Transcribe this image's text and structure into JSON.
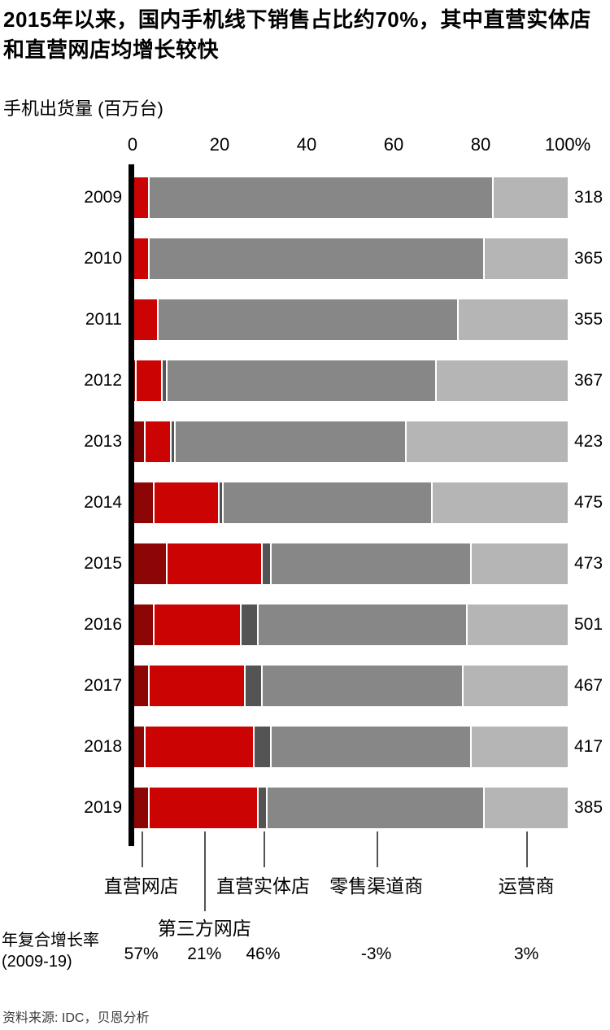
{
  "page": {
    "title": "2015年以来，国内手机线下销售占比约70%，其中直营实体店和直营网店均增长较快",
    "subtitle": "手机出货量 (百万台)",
    "source": "资料来源: IDC，贝恩分析"
  },
  "chart_data": {
    "type": "bar",
    "subtype": "horizontal-stacked-100pct",
    "title": "2015年以来，国内手机线下销售占比约70%，其中直营实体店和直营网店均增长较快",
    "axis_unit_label": "手机出货量 (百万台)",
    "x_ticks": [
      "0",
      "20",
      "40",
      "60",
      "80",
      "100%"
    ],
    "x_tick_values": [
      0,
      20,
      40,
      60,
      80,
      100
    ],
    "x_range": [
      0,
      100
    ],
    "categories": [
      "2009",
      "2010",
      "2011",
      "2012",
      "2013",
      "2014",
      "2015",
      "2016",
      "2017",
      "2018",
      "2019"
    ],
    "totals": [
      318,
      365,
      355,
      367,
      423,
      475,
      473,
      501,
      467,
      417,
      385
    ],
    "series": [
      {
        "name": "直营网店",
        "color": "#8B0604",
        "values": [
          0,
          0,
          0,
          1,
          3,
          5,
          8,
          5,
          4,
          3,
          4
        ]
      },
      {
        "name": "第三方网店",
        "color": "#CC0303",
        "values": [
          4,
          4,
          6,
          6,
          6,
          15,
          22,
          20,
          22,
          25,
          25
        ]
      },
      {
        "name": "直营实体店",
        "color": "#545454",
        "values": [
          0,
          0,
          0,
          1,
          1,
          1,
          2,
          4,
          4,
          4,
          2
        ]
      },
      {
        "name": "零售渠道商",
        "color": "#878787",
        "values": [
          79,
          77,
          69,
          62,
          53,
          48,
          46,
          48,
          46,
          46,
          50
        ]
      },
      {
        "name": "运营商",
        "color": "#B5B5B5",
        "values": [
          17,
          19,
          25,
          30,
          37,
          31,
          22,
          23,
          24,
          22,
          19
        ]
      }
    ],
    "cagr": {
      "label_line1": "年复合增长率",
      "label_line2": "(2009-19)",
      "values": [
        "57%",
        "21%",
        "46%",
        "-3%",
        "3%"
      ]
    }
  }
}
